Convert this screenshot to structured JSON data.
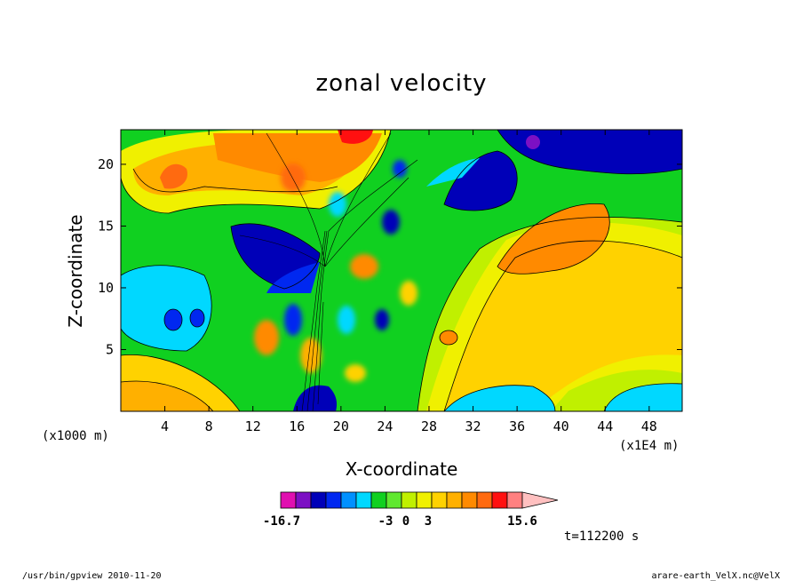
{
  "chart_data": {
    "type": "heatmap",
    "title": "zonal velocity",
    "xlabel": "X-coordinate",
    "ylabel": "Z-coordinate",
    "x_unit": "(x1E4 m)",
    "y_unit": "(x1000 m)",
    "x_ticks": [
      4,
      8,
      12,
      16,
      20,
      24,
      28,
      32,
      36,
      40,
      44,
      48
    ],
    "y_ticks": [
      5,
      10,
      15,
      20
    ],
    "xlim": [
      0,
      51
    ],
    "ylim": [
      0,
      22.8
    ],
    "colorbar": {
      "min_label": "-16.7",
      "max_label": "15.6",
      "mid_labels": [
        "-3",
        "0",
        "3"
      ],
      "levels": [
        -16.7,
        -12.3,
        -8.0,
        -6.0,
        -4.0,
        -3.0,
        -2.0,
        -1.0,
        0,
        1.0,
        2.0,
        3.0,
        4.0,
        6.0,
        8.7,
        12.1,
        15.6
      ],
      "colors": [
        "#e010b0",
        "#7c10c4",
        "#0000b8",
        "#0028f0",
        "#0090ff",
        "#00d8ff",
        "#10d020",
        "#60e830",
        "#c0f000",
        "#f0f000",
        "#ffd200",
        "#ffb000",
        "#ff8a00",
        "#ff6a10",
        "#ff1010",
        "#ff8080",
        "#ffc0c0"
      ]
    },
    "time_label": "t=112200 s"
  },
  "footer": {
    "left": "/usr/bin/gpview  2010-11-20",
    "right": "arare-earth_VelX.nc@VelX"
  }
}
